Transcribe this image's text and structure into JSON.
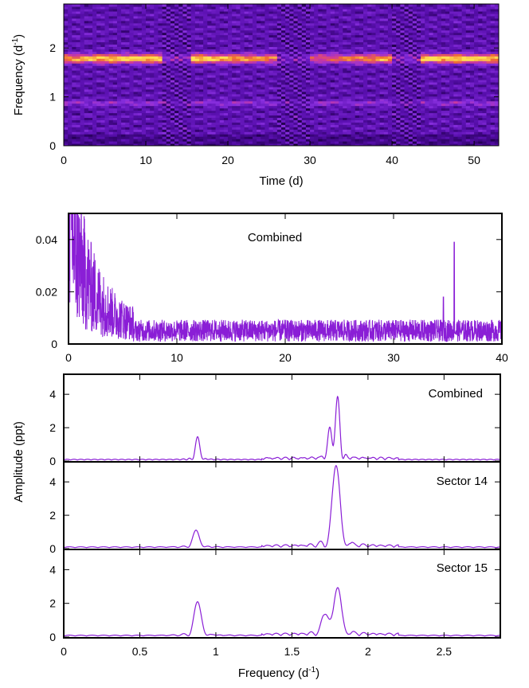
{
  "chart_data": [
    {
      "id": "spectrogram",
      "type": "heatmap",
      "title": "",
      "xlabel": "Time (d)",
      "ylabel_main": "Frequency (d",
      "ylabel_sup": "-1",
      "ylabel_end": ")",
      "xlim": [
        0,
        53
      ],
      "ylim": [
        0,
        2.9
      ],
      "x_ticks": [
        "0",
        "10",
        "20",
        "30",
        "40",
        "50"
      ],
      "y_ticks": [
        "0",
        "1",
        "2"
      ],
      "colormap": [
        "#000000",
        "#2a0060",
        "#5a10b0",
        "#8a30e0",
        "#d03a9a",
        "#f07030",
        "#ffe050"
      ],
      "gaps_d": [
        [
          12.0,
          15.5
        ],
        [
          26.0,
          30.0
        ],
        [
          40.0,
          43.5
        ]
      ],
      "dominant_frequency": 1.79,
      "secondary_frequency": 0.88
    },
    {
      "id": "combined-wide",
      "type": "line",
      "label": "Combined",
      "xlim": [
        0,
        40
      ],
      "ylim": [
        0,
        0.05
      ],
      "x_ticks": [
        "0",
        "10",
        "20",
        "30",
        "40"
      ],
      "y_ticks": [
        "0",
        "0.02",
        "0.04"
      ],
      "color": "#8a1ed6",
      "noise_floor": 0.006,
      "peaks": [
        {
          "x": 34.6,
          "y": 0.018
        },
        {
          "x": 35.6,
          "y": 0.039
        }
      ]
    },
    {
      "id": "combined-zoom",
      "type": "line",
      "label": "Combined",
      "xlim": [
        0,
        2.87
      ],
      "ylim": [
        0,
        5.2
      ],
      "y_ticks": [
        "0",
        "2",
        "4"
      ],
      "color": "#8a1ed6",
      "peaks": [
        {
          "x": 0.88,
          "y": 1.35,
          "w": 0.012
        },
        {
          "x": 1.75,
          "y": 1.7,
          "w": 0.012
        },
        {
          "x": 1.8,
          "y": 3.6,
          "w": 0.012
        }
      ]
    },
    {
      "id": "sector-14",
      "type": "line",
      "label": "Sector 14",
      "xlim": [
        0,
        2.87
      ],
      "ylim": [
        0,
        5.2
      ],
      "y_ticks": [
        "0",
        "2",
        "4"
      ],
      "color": "#8a1ed6",
      "peaks": [
        {
          "x": 0.87,
          "y": 1.0,
          "w": 0.018
        },
        {
          "x": 1.79,
          "y": 4.8,
          "w": 0.022
        }
      ]
    },
    {
      "id": "sector-15",
      "type": "line",
      "label": "Sector 15",
      "xlim": [
        0,
        2.87
      ],
      "ylim": [
        0,
        5.2
      ],
      "y_ticks": [
        "0",
        "2",
        "4"
      ],
      "x_ticks": [
        "0",
        "0.5",
        "1",
        "1.5",
        "2",
        "2.5"
      ],
      "color": "#8a1ed6",
      "peaks": [
        {
          "x": 0.88,
          "y": 2.0,
          "w": 0.02
        },
        {
          "x": 1.72,
          "y": 1.2,
          "w": 0.02
        },
        {
          "x": 1.8,
          "y": 2.7,
          "w": 0.022
        }
      ]
    }
  ],
  "labels": {
    "amplitude_axis": "Amplitude (ppt)",
    "bottom_xlabel_main": "Frequency (d",
    "bottom_xlabel_sup": "-1",
    "bottom_xlabel_end": ")"
  }
}
